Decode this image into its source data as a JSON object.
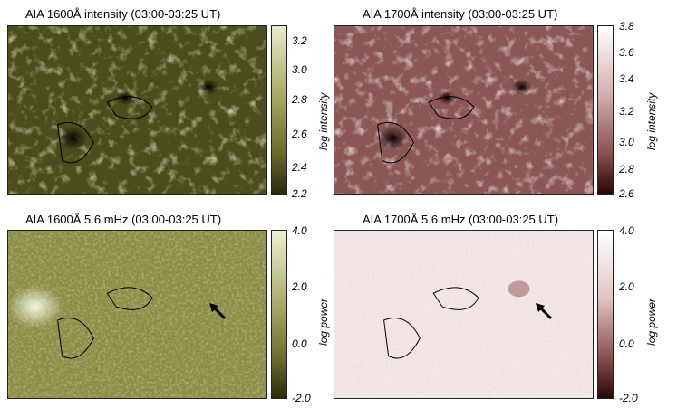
{
  "panels": [
    {
      "title": "AIA 1600Å intensity (03:00-03:25 UT)",
      "colorbar_label": "log intensity",
      "ticks": [
        "3.2",
        "3.0",
        "2.8",
        "2.6",
        "2.4",
        "2.2"
      ],
      "colormap": [
        "#e8ebc8",
        "#a2a35c",
        "#6b6b2c",
        "#2a2a0c"
      ]
    },
    {
      "title": "AIA 1700Å intensity (03:00-03:25 UT)",
      "colorbar_label": "log intensity",
      "ticks": [
        "3.8",
        "3.6",
        "3.4",
        "3.2",
        "3.0",
        "2.8",
        "2.6"
      ],
      "colormap": [
        "#ffffff",
        "#d4b0b0",
        "#8c5252",
        "#2a0505"
      ]
    },
    {
      "title": "AIA 1600Å 5.6 mHz (03:00-03:25 UT)",
      "colorbar_label": "log power",
      "ticks": [
        "4.0",
        "2.0",
        "0.0",
        "-2.0"
      ],
      "colormap": [
        "#eef0d3",
        "#a7a866",
        "#6f6f31",
        "#2b2b0c"
      ]
    },
    {
      "title": "AIA 1700Å 5.6 mHz (03:00-03:25 UT)",
      "colorbar_label": "log power",
      "ticks": [
        "4.0",
        "2.0",
        "0.0",
        "-2.0"
      ],
      "colormap": [
        "#ffffff",
        "#e0c6c6",
        "#8c5252",
        "#2a0505"
      ]
    }
  ]
}
